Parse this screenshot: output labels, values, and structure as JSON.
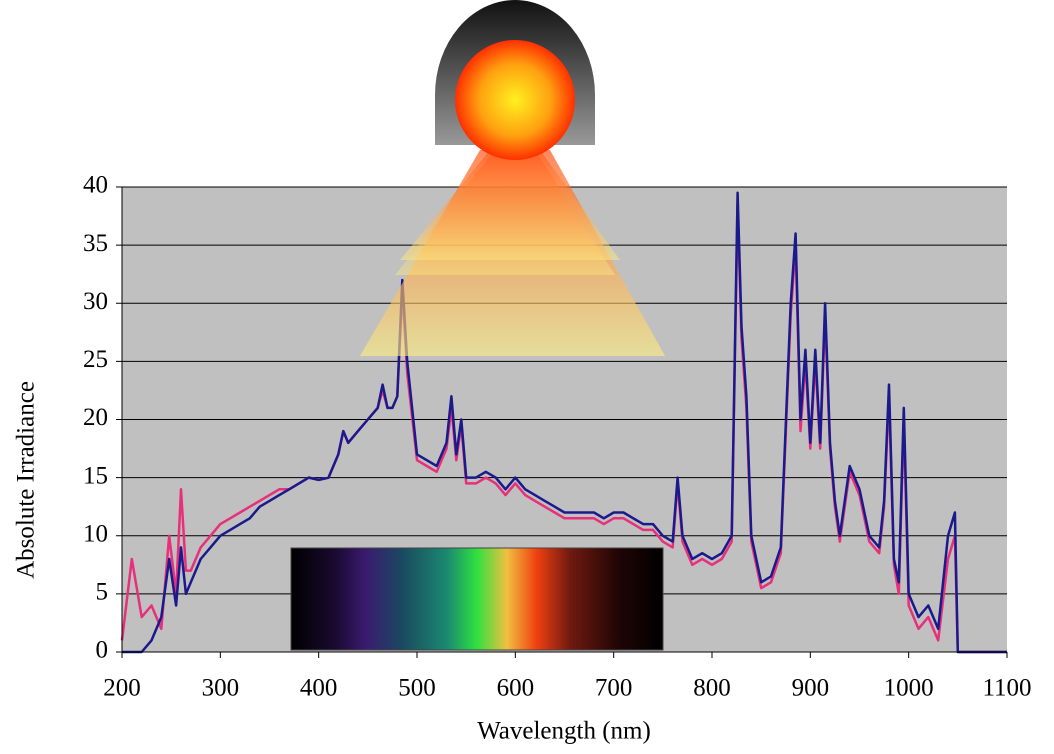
{
  "chart_data": {
    "type": "line",
    "x_label": "Wavelength (nm)",
    "y_label": "Absolute Irradiance",
    "x": [
      200,
      210,
      220,
      230,
      240,
      248,
      255,
      260,
      265,
      270,
      280,
      290,
      300,
      310,
      320,
      330,
      340,
      350,
      360,
      370,
      380,
      390,
      400,
      410,
      420,
      425,
      430,
      440,
      450,
      460,
      465,
      470,
      475,
      480,
      485,
      490,
      500,
      510,
      520,
      530,
      535,
      540,
      545,
      550,
      560,
      570,
      580,
      590,
      600,
      610,
      620,
      630,
      640,
      650,
      660,
      670,
      680,
      690,
      700,
      710,
      720,
      730,
      740,
      750,
      760,
      765,
      770,
      780,
      790,
      800,
      810,
      820,
      826,
      830,
      835,
      840,
      850,
      860,
      870,
      880,
      885,
      890,
      895,
      900,
      905,
      910,
      915,
      920,
      925,
      930,
      940,
      950,
      960,
      970,
      975,
      980,
      985,
      990,
      995,
      1000,
      1010,
      1020,
      1030,
      1040,
      1047,
      1050,
      1060,
      1080,
      1100
    ],
    "series": [
      {
        "color": "#e8307a",
        "values": [
          1,
          8,
          3,
          4,
          2,
          10,
          5,
          14,
          7,
          7,
          9,
          10,
          11,
          11.5,
          12,
          12.5,
          13,
          13.5,
          14,
          14,
          14.5,
          15,
          14.8,
          15,
          17,
          19,
          18,
          19,
          20,
          21,
          22.5,
          21,
          21,
          22,
          31,
          24,
          16.5,
          16,
          15.5,
          17.5,
          21,
          16.5,
          19.5,
          14.5,
          14.5,
          15,
          14.5,
          13.5,
          14.5,
          13.5,
          13,
          12.5,
          12,
          11.5,
          11.5,
          11.5,
          11.5,
          11,
          11.5,
          11.5,
          11,
          10.5,
          10.5,
          9.5,
          9,
          14.5,
          9.5,
          7.5,
          8,
          7.5,
          8,
          9.5,
          38.5,
          27,
          21,
          9.5,
          5.5,
          6,
          8.5,
          29,
          35,
          19,
          25,
          17.5,
          25,
          17.5,
          29,
          17.5,
          12.5,
          9.5,
          15.5,
          13.5,
          9.5,
          8.5,
          12.5,
          22,
          7.5,
          5,
          20,
          4,
          2,
          3,
          1,
          8,
          10,
          0,
          0,
          0,
          0
        ]
      },
      {
        "color": "#1a1a8c",
        "values": [
          0,
          0,
          0,
          1,
          3,
          8,
          4,
          9,
          5,
          6,
          8,
          9,
          10,
          10.5,
          11,
          11.5,
          12.5,
          13,
          13.5,
          14,
          14.5,
          15,
          14.8,
          15,
          17,
          19,
          18,
          19,
          20,
          21,
          23,
          21,
          21,
          22,
          32,
          25,
          17,
          16.5,
          16,
          18,
          22,
          17,
          20,
          15,
          15,
          15.5,
          15,
          14,
          15,
          14,
          13.5,
          13,
          12.5,
          12,
          12,
          12,
          12,
          11.5,
          12,
          12,
          11.5,
          11,
          11,
          10,
          9.5,
          15,
          10,
          8,
          8.5,
          8,
          8.5,
          10,
          39.5,
          28,
          22,
          10,
          6,
          6.5,
          9,
          30,
          36,
          20,
          26,
          18,
          26,
          18,
          30,
          18,
          13,
          10,
          16,
          14,
          10,
          9,
          13,
          23,
          8,
          6,
          21,
          5,
          3,
          4,
          2,
          10,
          12,
          0,
          0,
          0,
          0
        ]
      }
    ],
    "xlim": [
      200,
      1100
    ],
    "xticks": [
      200,
      300,
      400,
      500,
      600,
      700,
      800,
      900,
      1000,
      1100
    ],
    "ylim": [
      0,
      40
    ],
    "yticks": [
      0,
      5,
      10,
      15,
      20,
      25,
      30,
      35,
      40
    ],
    "grid": true
  }
}
